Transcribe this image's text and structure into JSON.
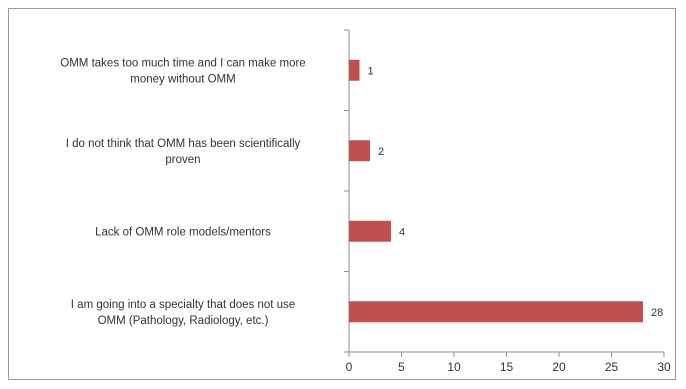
{
  "chart_data": {
    "type": "bar",
    "orientation": "horizontal",
    "title": "",
    "xlabel": "",
    "ylabel": "",
    "categories": [
      [
        "OMM takes too much time and I can make more",
        "money without OMM"
      ],
      [
        "I do not think that OMM has been scientifically",
        "proven"
      ],
      [
        "Lack of OMM role models/mentors"
      ],
      [
        "I am going into a specialty that does not use",
        "OMM (Pathology, Radiology, etc.)"
      ]
    ],
    "values": [
      1,
      2,
      4,
      28
    ],
    "data_labels": [
      "1",
      "2",
      "4",
      "28"
    ],
    "xlim": [
      0,
      30
    ],
    "xticks": [
      "0",
      "5",
      "10",
      "15",
      "20",
      "25",
      "30"
    ],
    "bar_color": "#c0504d",
    "grid": false,
    "legend": "none"
  }
}
